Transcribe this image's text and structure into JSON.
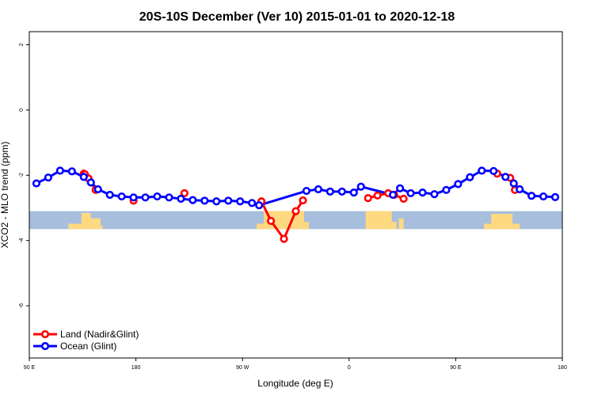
{
  "chart_data": {
    "type": "line",
    "title": "20S-10S December (Ver 10)   2015-01-01 to 2020-12-18",
    "xlabel": "Longitude (deg E)",
    "ylabel": "XCO2 - MLO trend (ppm)",
    "xlim": [
      90,
      540
    ],
    "ylim": [
      -7.6,
      2.4
    ],
    "x_ticks": [
      {
        "value": 90,
        "label": "90 E"
      },
      {
        "value": 180,
        "label": "180"
      },
      {
        "value": 270,
        "label": "90 W"
      },
      {
        "value": 360,
        "label": "0"
      },
      {
        "value": 450,
        "label": "90 E"
      },
      {
        "value": 540,
        "label": "180"
      }
    ],
    "y_ticks": [
      {
        "value": 2,
        "label": "2"
      },
      {
        "value": 0,
        "label": "0"
      },
      {
        "value": -2,
        "label": "-2"
      },
      {
        "value": -4,
        "label": "-4"
      },
      {
        "value": -6,
        "label": "-6"
      }
    ],
    "grid": false,
    "legend_position": "bottom-left",
    "series": [
      {
        "name": "Land (Nadir&Glint)",
        "color": "#ff0000",
        "points": [
          {
            "x": 136,
            "y": -1.95,
            "connect": true
          },
          {
            "x": 137,
            "y": -1.97,
            "connect": true
          },
          {
            "x": 140,
            "y": -2.1,
            "connect": true
          },
          {
            "x": 146,
            "y": -2.45,
            "connect": true
          },
          {
            "x": 178,
            "y": -2.78,
            "connect": false
          },
          {
            "x": 221,
            "y": -2.55,
            "connect": false
          },
          {
            "x": 286,
            "y": -2.8,
            "connect": false
          },
          {
            "x": 294,
            "y": -3.4,
            "connect": true
          },
          {
            "x": 305,
            "y": -3.95,
            "connect": true
          },
          {
            "x": 315,
            "y": -3.1,
            "connect": true
          },
          {
            "x": 321,
            "y": -2.77,
            "connect": true
          },
          {
            "x": 376,
            "y": -2.7,
            "connect": false
          },
          {
            "x": 384,
            "y": -2.62,
            "connect": true
          },
          {
            "x": 393,
            "y": -2.55,
            "connect": true
          },
          {
            "x": 398,
            "y": -2.6,
            "connect": true
          },
          {
            "x": 406,
            "y": -2.72,
            "connect": true
          },
          {
            "x": 485,
            "y": -1.95,
            "connect": false
          },
          {
            "x": 496,
            "y": -2.08,
            "connect": true
          },
          {
            "x": 500,
            "y": -2.45,
            "connect": true
          }
        ]
      },
      {
        "name": "Ocean (Glint)",
        "color": "#0000ff",
        "points": [
          {
            "x": 96,
            "y": -2.25
          },
          {
            "x": 106,
            "y": -2.07
          },
          {
            "x": 116,
            "y": -1.86
          },
          {
            "x": 126,
            "y": -1.88
          },
          {
            "x": 136,
            "y": -2.05
          },
          {
            "x": 142,
            "y": -2.22
          },
          {
            "x": 148,
            "y": -2.43
          },
          {
            "x": 158,
            "y": -2.6
          },
          {
            "x": 168,
            "y": -2.65
          },
          {
            "x": 178,
            "y": -2.68
          },
          {
            "x": 188,
            "y": -2.68
          },
          {
            "x": 198,
            "y": -2.65
          },
          {
            "x": 208,
            "y": -2.68
          },
          {
            "x": 218,
            "y": -2.72
          },
          {
            "x": 228,
            "y": -2.76
          },
          {
            "x": 238,
            "y": -2.78
          },
          {
            "x": 248,
            "y": -2.8
          },
          {
            "x": 258,
            "y": -2.78
          },
          {
            "x": 268,
            "y": -2.8
          },
          {
            "x": 278,
            "y": -2.85
          },
          {
            "x": 284,
            "y": -2.92
          },
          {
            "x": 324,
            "y": -2.48
          },
          {
            "x": 334,
            "y": -2.43
          },
          {
            "x": 344,
            "y": -2.5
          },
          {
            "x": 354,
            "y": -2.5
          },
          {
            "x": 364,
            "y": -2.53
          },
          {
            "x": 370,
            "y": -2.35
          },
          {
            "x": 397,
            "y": -2.6
          },
          {
            "x": 403,
            "y": -2.4
          },
          {
            "x": 412,
            "y": -2.55
          },
          {
            "x": 422,
            "y": -2.53
          },
          {
            "x": 432,
            "y": -2.58
          },
          {
            "x": 442,
            "y": -2.45
          },
          {
            "x": 452,
            "y": -2.27
          },
          {
            "x": 462,
            "y": -2.06
          },
          {
            "x": 472,
            "y": -1.86
          },
          {
            "x": 482,
            "y": -1.87
          },
          {
            "x": 492,
            "y": -2.05
          },
          {
            "x": 499,
            "y": -2.25
          },
          {
            "x": 504,
            "y": -2.43
          },
          {
            "x": 514,
            "y": -2.63
          },
          {
            "x": 524,
            "y": -2.65
          },
          {
            "x": 534,
            "y": -2.67
          }
        ]
      }
    ],
    "land_mask_band": {
      "y_range": [
        -3.65,
        -3.1
      ],
      "ocean_color": "#a8bedd",
      "land_color": "#ffd980",
      "land_spans": [
        [
          123,
          134,
          0.3
        ],
        [
          134,
          142,
          0.9
        ],
        [
          142,
          150,
          0.6
        ],
        [
          150,
          152,
          0.2
        ],
        [
          282,
          288,
          0.3
        ],
        [
          288,
          322,
          1.0
        ],
        [
          322,
          326,
          0.4
        ],
        [
          374,
          396,
          1.0
        ],
        [
          396,
          400,
          0.4
        ],
        [
          402,
          406,
          0.6
        ],
        [
          474,
          480,
          0.3
        ],
        [
          480,
          498,
          0.85
        ],
        [
          498,
          504,
          0.3
        ]
      ]
    }
  }
}
